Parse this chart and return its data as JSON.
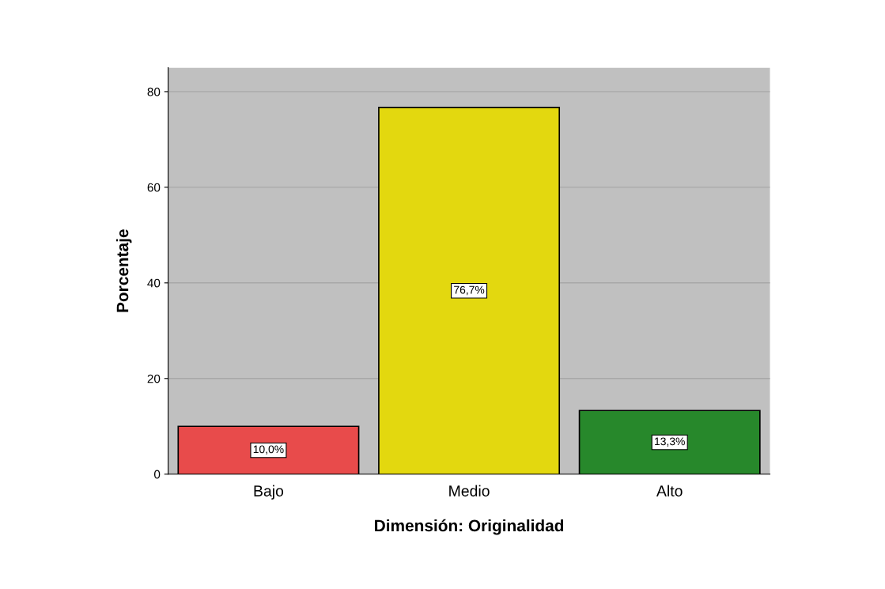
{
  "chart_data": {
    "type": "bar",
    "xlabel": "Dimensión: Originalidad",
    "ylabel": "Porcentaje",
    "categories": [
      "Bajo",
      "Medio",
      "Alto"
    ],
    "values": [
      10.0,
      76.7,
      13.3
    ],
    "colors": [
      "#e84b4b",
      "#e3d80f",
      "#27882b"
    ],
    "value_labels": [
      "10,0%",
      "76,7%",
      "13,3%"
    ],
    "ylim": [
      0,
      85
    ],
    "yticks": [
      0,
      20,
      40,
      60,
      80
    ],
    "grid": "y",
    "legend": false
  }
}
